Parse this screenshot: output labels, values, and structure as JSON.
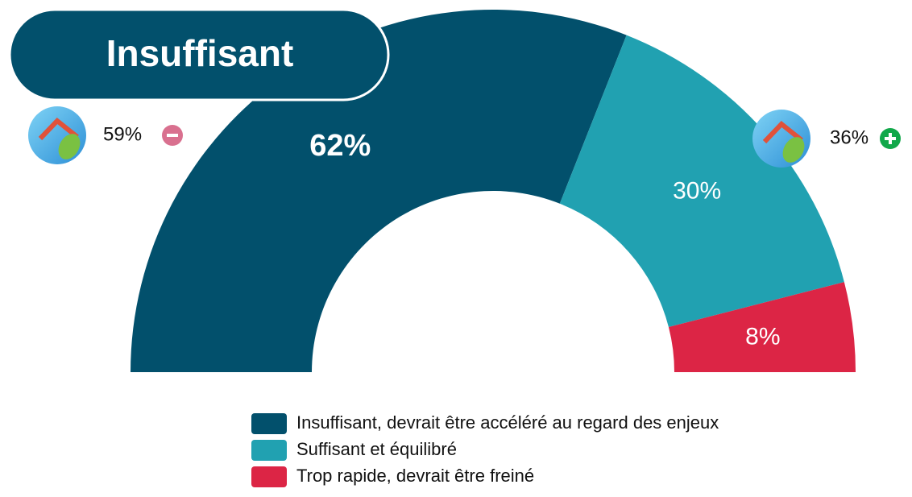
{
  "chart_data": {
    "type": "pie",
    "title": "Insuffisant",
    "categories": [
      "Insuffisant, devrait être accéléré au regard des enjeux",
      "Suffisant et équilibré",
      "Trop rapide, devrait être freiné"
    ],
    "values": [
      62,
      30,
      8
    ],
    "value_labels": [
      "62%",
      "30%",
      "8%"
    ],
    "colors": [
      "#02506c",
      "#21a1b1",
      "#dc2545"
    ],
    "annotations": [
      "59%",
      "36%"
    ]
  }
}
